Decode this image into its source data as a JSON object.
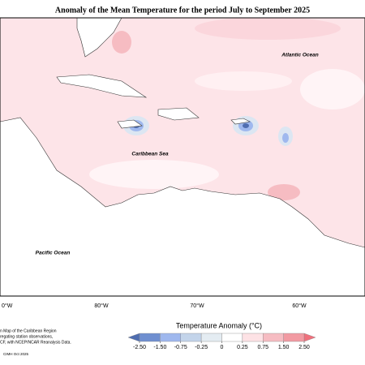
{
  "title": "Anomaly of the Mean Temperature for the period July to September 2025",
  "map": {
    "atlantic": "Atlantic Ocean",
    "caribbean": "Caribbean Sea",
    "pacific": "Pacific Ocean",
    "longitudes": [
      "0°W",
      "80°W",
      "70°W",
      "60°W"
    ]
  },
  "legend": {
    "title": "Temperature Anomaly (°C)",
    "ticks": [
      {
        "value": -2.5,
        "label": "-2.50"
      },
      {
        "value": -1.5,
        "label": "-1.50"
      },
      {
        "value": -0.75,
        "label": "-0.75"
      },
      {
        "value": -0.25,
        "label": "-0.25"
      },
      0,
      {
        "value": 0.25,
        "label": "0.25"
      },
      {
        "value": 0.75,
        "label": "0.75"
      },
      {
        "value": 1.5,
        "label": "1.50"
      },
      {
        "value": 2.5,
        "label": "2.50"
      }
    ],
    "colors": [
      "#4f6db0",
      "#6f8fd0",
      "#9fb8ee",
      "#c3d4ea",
      "#e4ecf2",
      "#ffffff",
      "#fde2e5",
      "#f6bcc2",
      "#f29aa2",
      "#f0707c"
    ]
  },
  "footer": {
    "lines": [
      "n Map of the Caribbean Region",
      "regating station observations,",
      "CF, with NCEP/NCAR Reanalysis Data."
    ],
    "credit": "CIMH Oct 2025"
  }
}
